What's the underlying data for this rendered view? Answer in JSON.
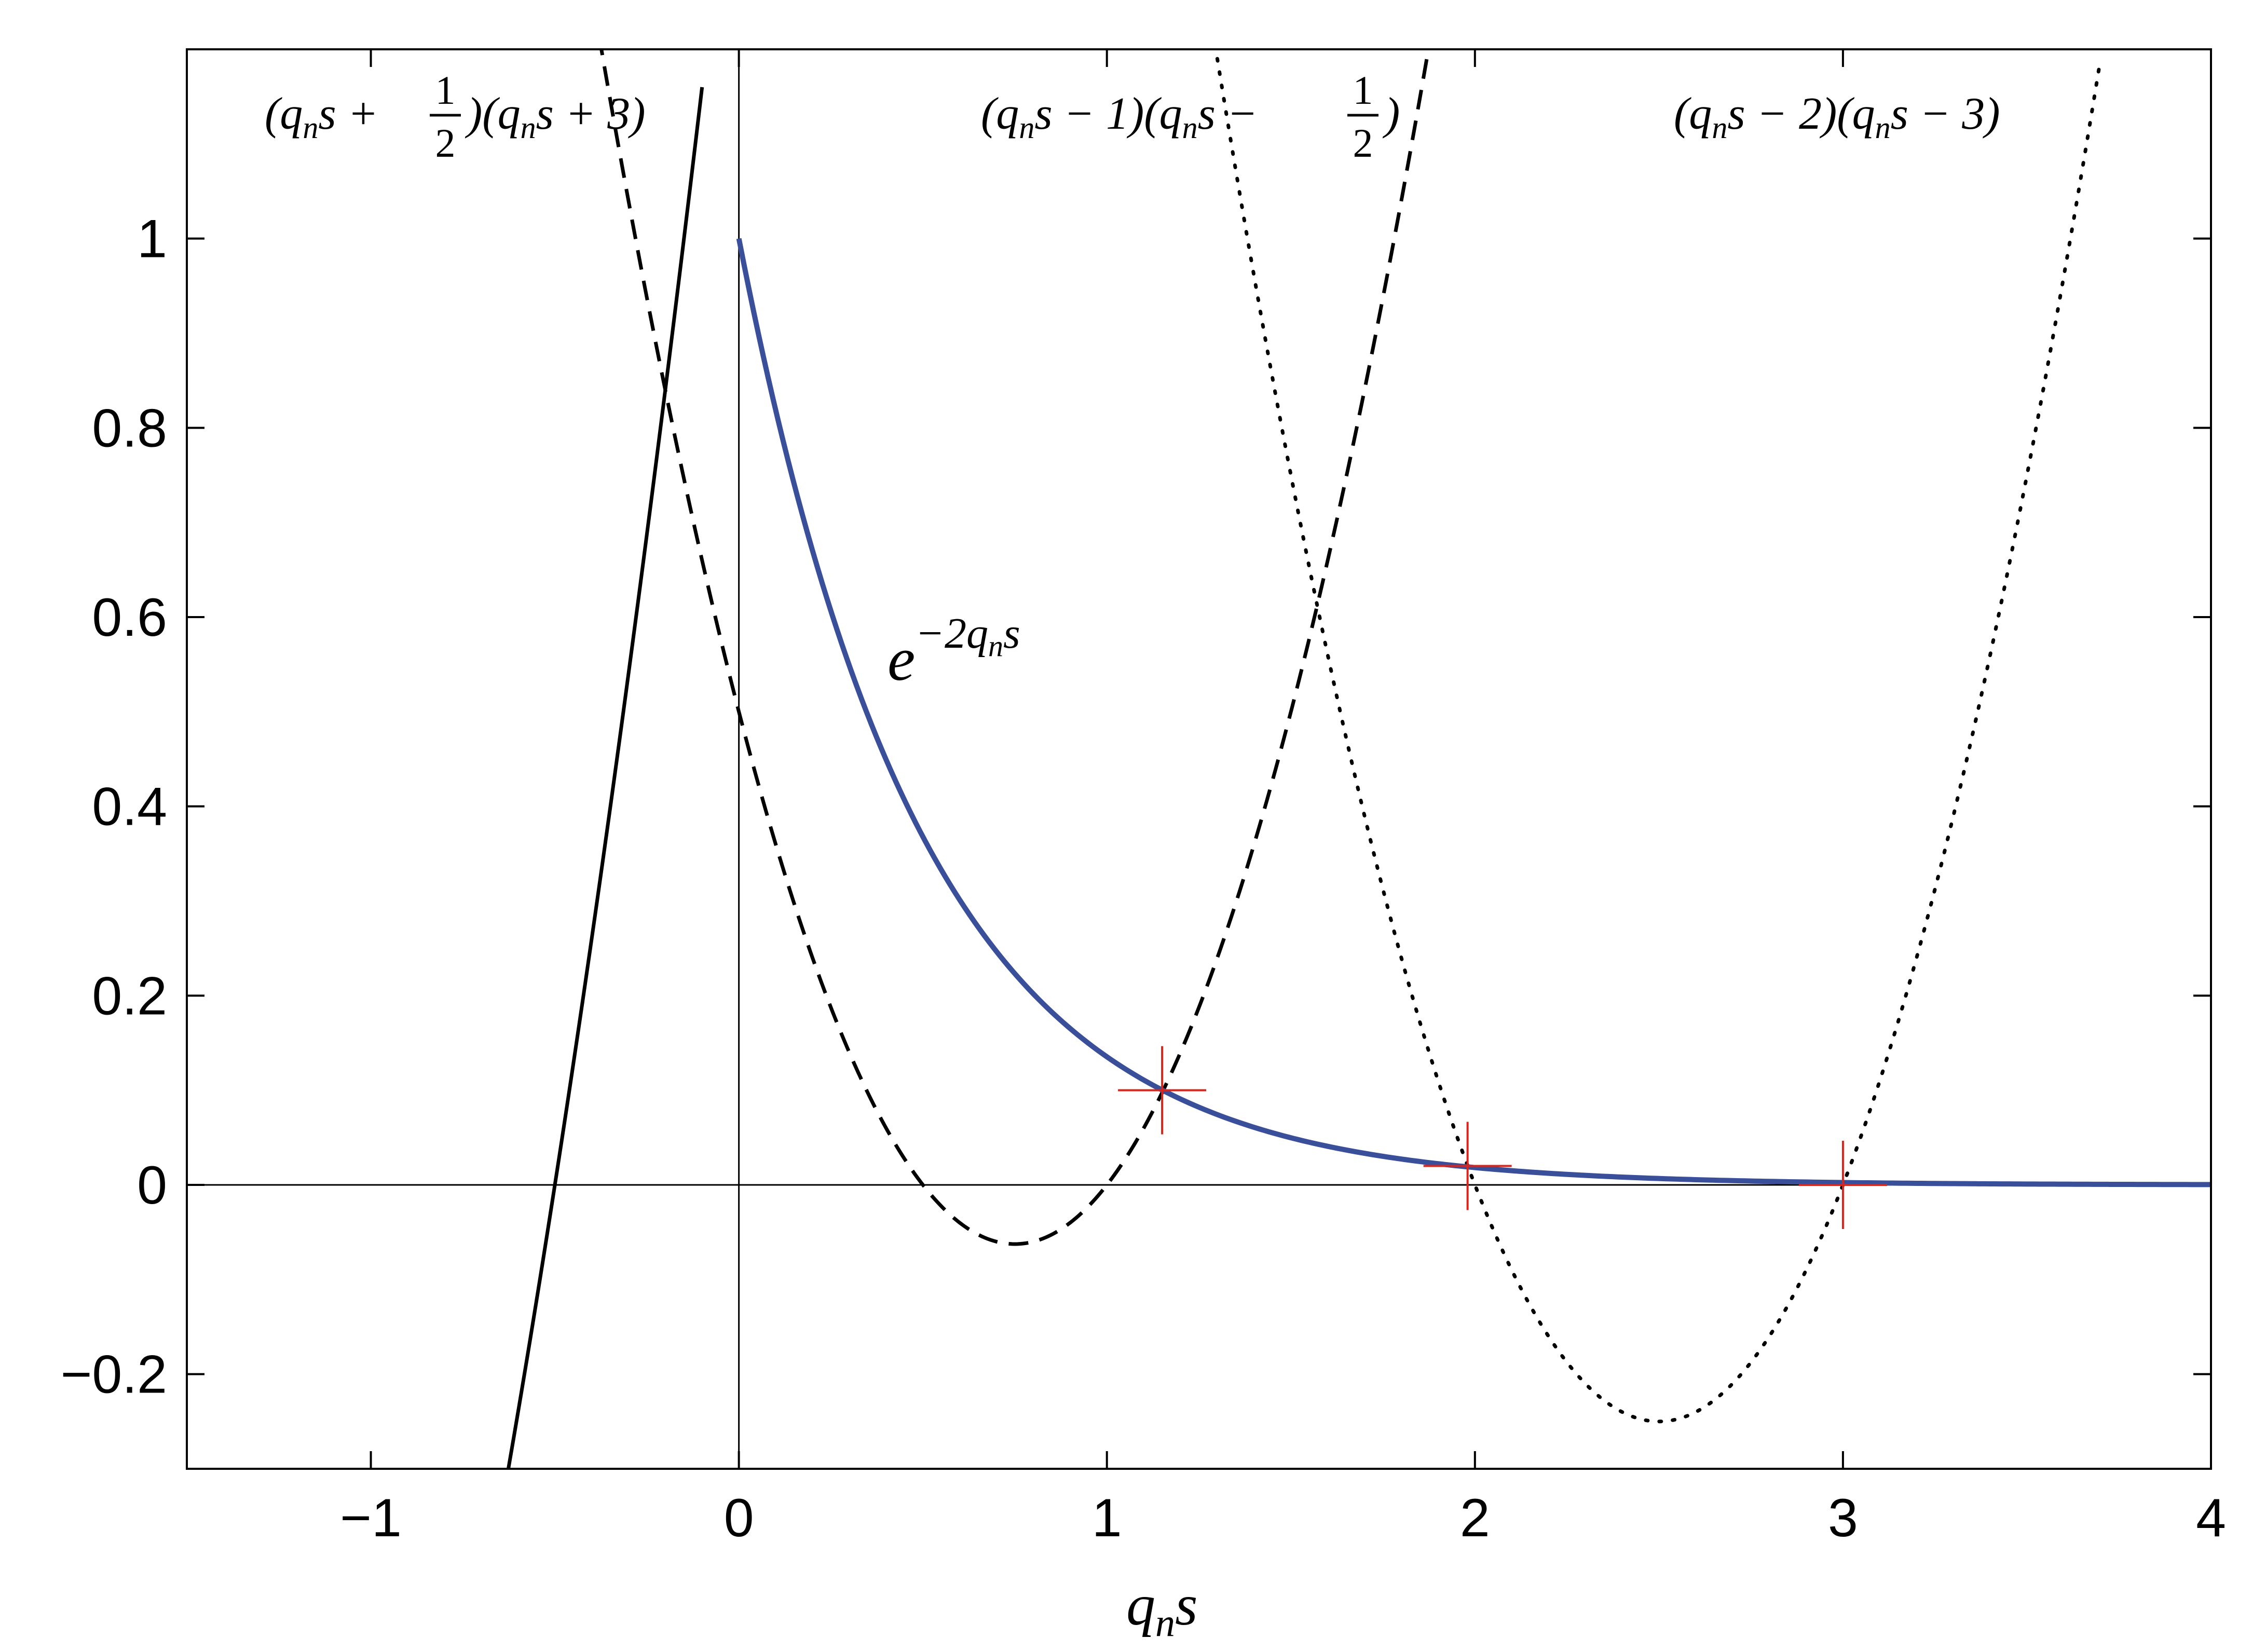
{
  "chart_data": {
    "type": "line",
    "title": "",
    "xlabel": "q_n s",
    "ylabel": "",
    "xlim": [
      -1.5,
      4
    ],
    "ylim": [
      -0.3,
      1.2
    ],
    "grid": false,
    "x_ticks": [
      -1,
      0,
      1,
      2,
      3,
      4
    ],
    "x_tick_labels": [
      "−1",
      "0",
      "1",
      "2",
      "3",
      "4"
    ],
    "y_ticks": [
      -0.2,
      0,
      0.2,
      0.4,
      0.6,
      0.8,
      1
    ],
    "y_tick_labels": [
      "−0.2",
      "0",
      "0.2",
      "0.4",
      "0.6",
      "0.8",
      "1"
    ],
    "series": [
      {
        "name": "(q_n s + 1/2)(q_n s + 3)",
        "formula": "(x+0.5)*(x+3)",
        "style": "solid",
        "color": "#000000",
        "x": [
          -0.63,
          -0.6,
          -0.55,
          -0.5,
          -0.45,
          -0.4,
          -0.35,
          -0.3,
          -0.25,
          -0.2,
          -0.15,
          -0.1
        ],
        "y": [
          -0.307,
          -0.24,
          -0.1225,
          0.0,
          0.1275,
          0.26,
          0.3975,
          0.54,
          0.6875,
          0.84,
          0.9975,
          1.16
        ]
      },
      {
        "name": "(q_n s - 1)(q_n s - 1/2)",
        "formula": "(x-1)*(x-0.5)",
        "style": "dashed",
        "color": "#000000",
        "x": [
          -0.38,
          -0.2,
          0.0,
          0.25,
          0.5,
          0.75,
          1.0,
          1.25,
          1.5,
          1.75,
          1.88
        ],
        "y": [
          1.194,
          0.84,
          0.5,
          0.1875,
          0.0,
          -0.0625,
          0.0,
          0.1875,
          0.5,
          0.9375,
          1.206
        ]
      },
      {
        "name": "(q_n s - 2)(q_n s - 3)",
        "formula": "(x-2)*(x-3)",
        "style": "dotted",
        "color": "#000000",
        "x": [
          1.3,
          1.5,
          1.75,
          2.0,
          2.25,
          2.5,
          2.75,
          3.0,
          3.25,
          3.5,
          3.7
        ],
        "y": [
          1.19,
          0.75,
          0.3125,
          0.0,
          -0.1875,
          -0.25,
          -0.1875,
          0.0,
          0.3125,
          0.75,
          1.19
        ]
      },
      {
        "name": "e^{-2 q_n s}",
        "formula": "exp(-2*x)",
        "style": "solid",
        "color": "#3a4f9a",
        "x": [
          0.0,
          0.25,
          0.5,
          0.75,
          1.0,
          1.15,
          1.5,
          2.0,
          2.5,
          3.0,
          3.5,
          4.0
        ],
        "y": [
          1.0,
          0.6065,
          0.3679,
          0.2231,
          0.1353,
          0.1003,
          0.0498,
          0.0183,
          0.0067,
          0.0025,
          0.0009,
          0.0003
        ]
      }
    ],
    "intersections": [
      {
        "x": 1.15,
        "y": 0.1
      },
      {
        "x": 1.98,
        "y": 0.02
      },
      {
        "x": 3.0,
        "y": 0.0
      }
    ],
    "annotations": [
      {
        "text": "(q_n s + 1/2)(q_n s + 3)"
      },
      {
        "text": "(q_n s − 1)(q_n s − 1/2)"
      },
      {
        "text": "(q_n s − 2)(q_n s − 3)"
      },
      {
        "text": "e^{−2 q_n s}"
      }
    ],
    "colors": {
      "exp_curve": "#3a4f9a",
      "markers": "#d9261c",
      "axes": "#000000"
    }
  }
}
